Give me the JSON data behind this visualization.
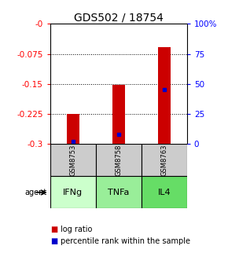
{
  "title": "GDS502 / 18754",
  "samples": [
    "GSM8753",
    "GSM8758",
    "GSM8763"
  ],
  "agents": [
    "IFNg",
    "TNFa",
    "IL4"
  ],
  "agent_colors": [
    "#ccffcc",
    "#99ee99",
    "#66dd66"
  ],
  "log_ratio": [
    -0.225,
    -0.152,
    -0.058
  ],
  "percentile_rank": [
    2,
    8,
    45
  ],
  "ylim_left": [
    -0.3,
    0.0
  ],
  "left_ticks": [
    -0.0,
    -0.075,
    -0.15,
    -0.225,
    -0.3
  ],
  "left_tick_labels": [
    "-0",
    "-0.075",
    "-0.15",
    "-0.225",
    "-0.3"
  ],
  "right_ticks_pct": [
    100,
    75,
    50,
    25,
    0
  ],
  "right_tick_labels": [
    "100%",
    "75",
    "50",
    "25",
    "0"
  ],
  "bar_color": "#cc0000",
  "dot_color": "#0000cc",
  "sample_bg": "#cccccc",
  "title_fontsize": 10,
  "tick_fontsize": 7.5,
  "legend_fontsize": 7
}
